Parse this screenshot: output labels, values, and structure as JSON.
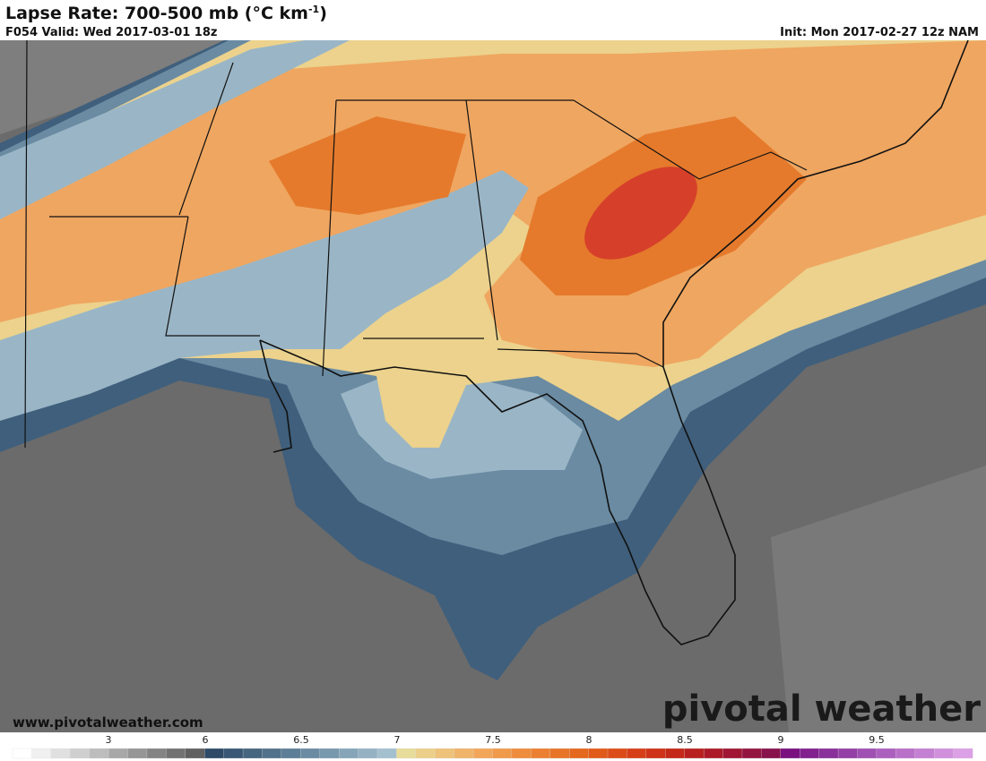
{
  "header": {
    "title": "Lapse Rate: 700-500 mb (°C km",
    "title_superscript": "-1",
    "title_end": ")",
    "valid": "F054 Valid: Wed 2017-03-01 18z",
    "init": "Init: Mon 2017-02-27 12z NAM"
  },
  "footer": {
    "url": "www.pivotalweather.com",
    "logo": "pivotal weather"
  },
  "colorbar": {
    "labels": [
      3,
      6,
      6.5,
      7,
      7.5,
      8,
      8.5,
      9,
      9.5
    ],
    "colors": [
      "#ffffff",
      "#f0f0f0",
      "#e0e0e0",
      "#cfcfcf",
      "#bdbdbd",
      "#a8a8a8",
      "#969696",
      "#848484",
      "#727272",
      "#606060",
      "#2e4a66",
      "#3a5775",
      "#46657f",
      "#52728b",
      "#5d7e96",
      "#6a8ba2",
      "#7898ad",
      "#86a5b8",
      "#95b2c3",
      "#a4bfce",
      "#e8dc9a",
      "#ecd08a",
      "#eec27a",
      "#f0b46a",
      "#f2a65a",
      "#f09a4c",
      "#ee8d3e",
      "#ec8032",
      "#e87428",
      "#e4681e",
      "#e05a1a",
      "#dc4c18",
      "#d63e18",
      "#ce3218",
      "#c42818",
      "#b82020",
      "#ac1a2a",
      "#a01634",
      "#941440",
      "#88124c",
      "#7a1080",
      "#82208e",
      "#8a309a",
      "#9440a6",
      "#a050b2",
      "#ac60be",
      "#b870c8",
      "#c480d2",
      "#d090dc",
      "#dca0e6"
    ]
  }
}
